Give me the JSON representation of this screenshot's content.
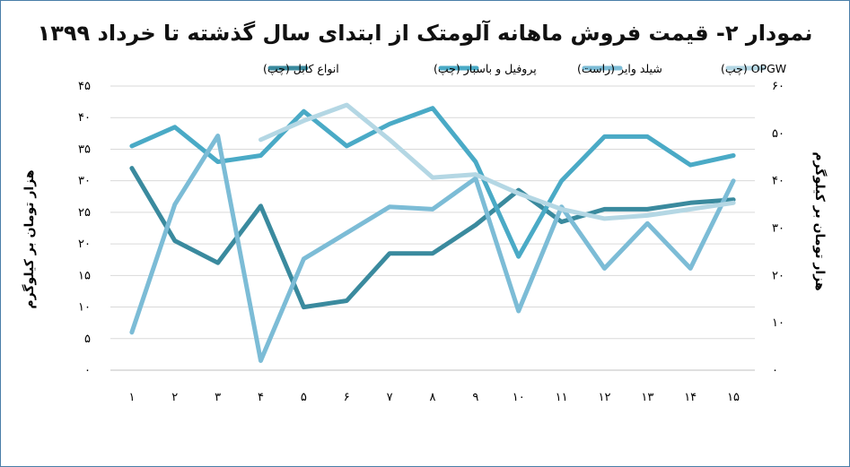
{
  "chart_data": {
    "type": "line",
    "title": "نمودار ۲- قیمت فروش ماهانه آلومتک از ابتدای سال گذشته تا خرداد ۱۳۹۹",
    "categories": [
      "۱",
      "۲",
      "۳",
      "۴",
      "۵",
      "۶",
      "۷",
      "۸",
      "۹",
      "۱۰",
      "۱۱",
      "۱۲",
      "۱۳",
      "۱۴",
      "۱۵"
    ],
    "left_axis": {
      "label": "هزار تومان بر کیلوگرم",
      "ylim": [
        0,
        45
      ],
      "ticks": [
        0,
        5,
        10,
        15,
        20,
        25,
        30,
        35,
        40,
        45
      ],
      "tick_labels": [
        "۰",
        "۵",
        "۱۰",
        "۱۵",
        "۲۰",
        "۲۵",
        "۳۰",
        "۳۵",
        "۴۰",
        "۴۵"
      ]
    },
    "right_axis": {
      "label": "هزار تومان بر کیلوگرم",
      "ylim": [
        0,
        60
      ],
      "ticks": [
        0,
        10,
        20,
        30,
        40,
        50,
        60
      ],
      "tick_labels": [
        "۰",
        "۱۰",
        "۲۰",
        "۳۰",
        "۴۰",
        "۵۰",
        "۶۰"
      ]
    },
    "grid": "horizontal",
    "legend_position": "top",
    "series": [
      {
        "name": "انواع کابل (چپ)",
        "axis": "left",
        "color": "#3a8a9e",
        "values": [
          32,
          20.5,
          17,
          26,
          10,
          11,
          18.5,
          18.5,
          23,
          28.5,
          23.5,
          25.5,
          25.5,
          26.5,
          27
        ]
      },
      {
        "name": "پروفیل و باسبار (چپ)",
        "axis": "left",
        "color": "#4aaac6",
        "values": [
          35.5,
          38.5,
          33,
          34,
          41,
          35.5,
          39,
          41.5,
          33,
          18,
          30,
          37,
          37,
          32.5,
          34
        ]
      },
      {
        "name": "شیلد وایر (راست)",
        "axis": "right",
        "color": "#7cbcd6",
        "values": [
          8,
          35,
          49.5,
          2,
          23.5,
          29,
          34.5,
          34,
          40.5,
          12.5,
          34.5,
          21.5,
          31,
          21.5,
          40
        ]
      },
      {
        "name": "OPGW (چپ)",
        "axis": "left",
        "color": "#b4d7e4",
        "values": [
          null,
          null,
          null,
          36.5,
          39.5,
          42,
          36.5,
          30.5,
          31,
          28,
          25.5,
          24,
          24.5,
          25.5,
          26.5
        ]
      }
    ]
  }
}
